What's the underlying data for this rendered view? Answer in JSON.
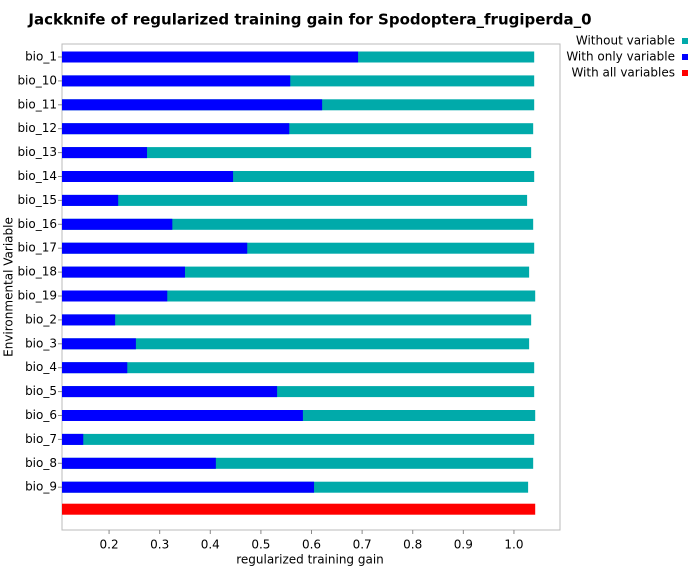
{
  "chart_data": {
    "type": "bar",
    "orientation": "horizontal",
    "title": "Jackknife of regularized training gain for Spodoptera_frugiperda_0",
    "x_label": "regularized training gain",
    "y_label": "Environmental Variable",
    "categories": [
      "bio_1",
      "bio_10",
      "bio_11",
      "bio_12",
      "bio_13",
      "bio_14",
      "bio_15",
      "bio_16",
      "bio_17",
      "bio_18",
      "bio_19",
      "bio_2",
      "bio_3",
      "bio_4",
      "bio_5",
      "bio_6",
      "bio_7",
      "bio_8",
      "bio_9",
      null
    ],
    "series": [
      {
        "name": "Without variable",
        "color": "#00aaaa",
        "values": [
          1.04,
          1.04,
          1.04,
          1.038,
          1.034,
          1.04,
          1.026,
          1.038,
          1.04,
          1.03,
          1.042,
          1.034,
          1.03,
          1.04,
          1.04,
          1.042,
          1.04,
          1.038,
          1.028,
          null
        ]
      },
      {
        "name": "With only variable",
        "color": "#0000ff",
        "values": [
          0.692,
          0.558,
          0.621,
          0.556,
          0.275,
          0.445,
          0.218,
          0.325,
          0.473,
          0.35,
          0.315,
          0.212,
          0.253,
          0.236,
          0.532,
          0.583,
          0.149,
          0.411,
          0.605,
          null
        ]
      },
      {
        "name": "With all variables",
        "color": "#ff0000",
        "values": [
          null,
          null,
          null,
          null,
          null,
          null,
          null,
          null,
          null,
          null,
          null,
          null,
          null,
          null,
          null,
          null,
          null,
          null,
          null,
          1.042
        ]
      }
    ],
    "xlim": [
      0.107,
      1.091
    ],
    "xticks": [
      0.2,
      0.3,
      0.4,
      0.5,
      0.6,
      0.7,
      0.8,
      0.9,
      {
        "value": 1.0,
        "label": "1.0"
      }
    ],
    "legend": "top-right"
  }
}
